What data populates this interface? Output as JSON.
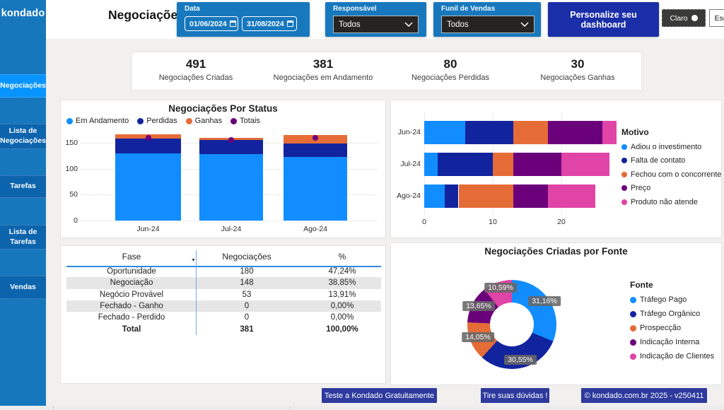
{
  "app": {
    "logo": "kondado"
  },
  "sidebar": {
    "items": [
      {
        "label": "Negociações",
        "active": true
      },
      {
        "label": "Lista de Negociações",
        "active": false
      },
      {
        "label": "Tarefas",
        "active": false
      },
      {
        "label": "Lista de Tarefas",
        "active": false
      },
      {
        "label": "Vendas",
        "active": false
      }
    ]
  },
  "topbar": {
    "title": "Negociações",
    "filters": {
      "date": {
        "label": "Data",
        "start": "01/06/2024",
        "end": "31/08/2024"
      },
      "responsible": {
        "label": "Responsável",
        "value": "Todos"
      },
      "funnel": {
        "label": "Funil de Vendas",
        "value": "Todos"
      }
    },
    "personalize_label": "Personalize seu dashboard",
    "theme": {
      "light": "Claro",
      "dark": "Escuro"
    }
  },
  "kpis": [
    {
      "value": "491",
      "label": "Negociações Criadas"
    },
    {
      "value": "381",
      "label": "Negociações em Andamento"
    },
    {
      "value": "80",
      "label": "Negociações Perdidas"
    },
    {
      "value": "30",
      "label": "Negociações Ganhas"
    }
  ],
  "chart_data": [
    {
      "id": "status",
      "type": "bar",
      "title": "Negociações Por Status",
      "categories": [
        "Jun-24",
        "Jul-24",
        "Ago-24"
      ],
      "series": [
        {
          "name": "Em Andamento",
          "color": "#118DFF",
          "values": [
            130,
            128,
            123
          ]
        },
        {
          "name": "Perdidas",
          "color": "#12239E",
          "values": [
            28,
            27,
            25
          ]
        },
        {
          "name": "Ganhas",
          "color": "#E66C37",
          "values": [
            8,
            5,
            17
          ]
        },
        {
          "name": "Totais",
          "color": "#6B007B",
          "render": "dot",
          "values": [
            160,
            155,
            160
          ]
        }
      ],
      "y_ticks": [
        0,
        50,
        100,
        150
      ],
      "ylim": [
        0,
        150
      ],
      "grid": "dotted",
      "legend_position": "top"
    },
    {
      "id": "motivo",
      "type": "bar-horizontal",
      "legend_title": "Motivo",
      "categories": [
        "Jun-24",
        "Jul-24",
        "Ago-24"
      ],
      "series": [
        {
          "name": "Adiou o investimento",
          "color": "#118DFF",
          "values": [
            6,
            2,
            3
          ]
        },
        {
          "name": "Falta de contato",
          "color": "#12239E",
          "values": [
            7,
            8,
            2
          ]
        },
        {
          "name": "Fechou com o concorrente",
          "color": "#E66C37",
          "values": [
            5,
            3,
            8
          ]
        },
        {
          "name": "Preço",
          "color": "#6B007B",
          "values": [
            8,
            7,
            5
          ]
        },
        {
          "name": "Produto não atende",
          "color": "#E044A7",
          "values": [
            2,
            7,
            7
          ]
        }
      ],
      "x_ticks": [
        0,
        10,
        20
      ],
      "xlim": [
        0,
        28
      ],
      "grid": "dotted",
      "legend_position": "right"
    },
    {
      "id": "fonte",
      "type": "pie",
      "title": "Negociações Criadas por Fonte",
      "legend_title": "Fonte",
      "slices": [
        {
          "name": "Tráfego Pago",
          "color": "#118DFF",
          "pct": 31.16,
          "label": "31,16%"
        },
        {
          "name": "Tráfego Orgânico",
          "color": "#12239E",
          "pct": 30.55,
          "label": "30,55%"
        },
        {
          "name": "Prospecção",
          "color": "#E66C37",
          "pct": 14.05,
          "label": "14,05%"
        },
        {
          "name": "Indicação Interna",
          "color": "#6B007B",
          "pct": 13.65,
          "label": "13,65%"
        },
        {
          "name": "Indicação de Clientes",
          "color": "#E044A7",
          "pct": 10.59,
          "label": "10,59%"
        }
      ],
      "legend_position": "right"
    },
    {
      "id": "fases",
      "type": "table",
      "columns": [
        "Fase",
        "Negociações",
        "%"
      ],
      "rows": [
        [
          "Oportunidade",
          "180",
          "47,24%"
        ],
        [
          "Negociação",
          "148",
          "38,85%"
        ],
        [
          "Negócio Provável",
          "53",
          "13,91%"
        ],
        [
          "Fechado - Ganho",
          "0",
          "0,00%"
        ],
        [
          "Fechado - Perdido",
          "0",
          "0,00%"
        ]
      ],
      "total": [
        "Total",
        "381",
        "100,00%"
      ]
    }
  ],
  "footer": {
    "cta": "Teste a Kondado Gratuitamente",
    "help": "Tire suas dúvidas !",
    "copyright": "© kondado.com.br 2025 - v250411"
  },
  "icons": {
    "calendar": "calendar-icon",
    "chevron_down": "chevron-down-icon",
    "sort_desc": "▼",
    "theme_light_dot": "circle-white-icon",
    "theme_dark_dot": "circle-black-icon"
  },
  "colors": {
    "background": "#F1F0EF",
    "sidebar": "#1777BD",
    "sidebar_active": "#0794FF",
    "sidebar_item": "#0C64AD",
    "slicer_panel": "#1778BE",
    "dropdown_bg": "#252423",
    "personalize_button": "#1A2EA8",
    "footer_button": "#2E3A9D",
    "accent_blue": "#118DFF",
    "navy": "#12239E",
    "orange": "#E66C37",
    "purple": "#6B007B",
    "pink": "#E044A7"
  }
}
